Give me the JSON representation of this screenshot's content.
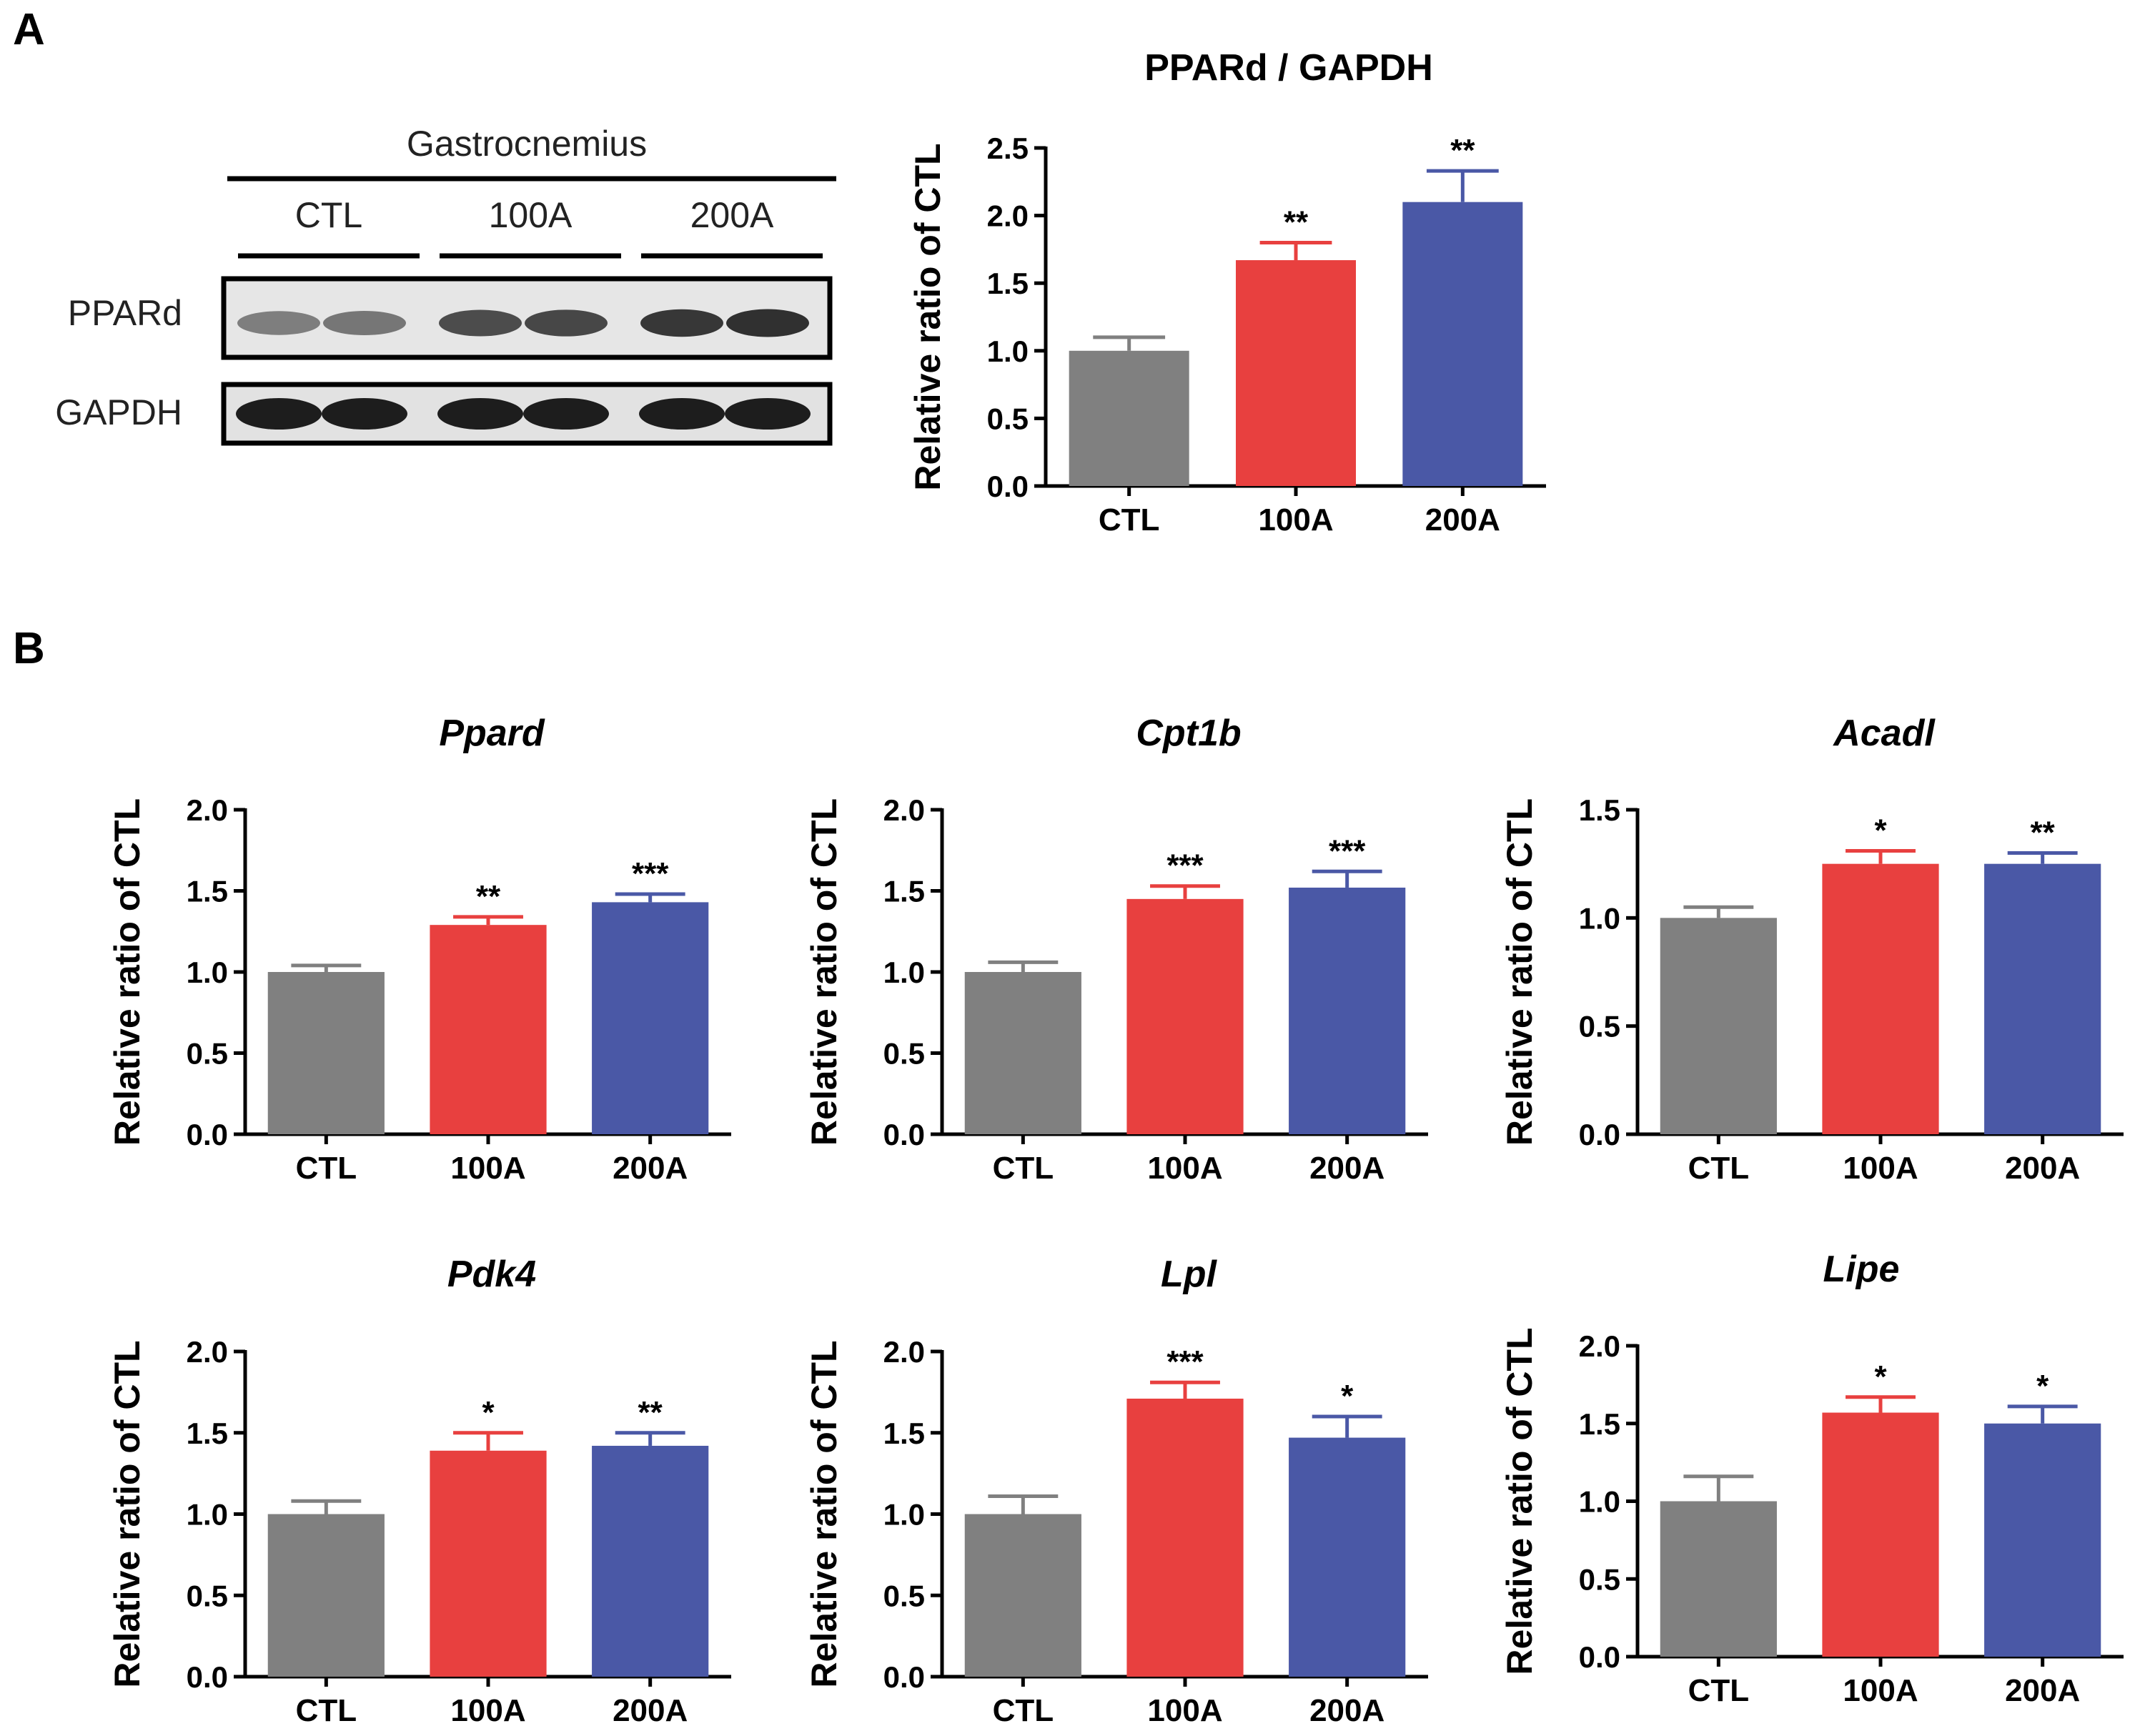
{
  "panels": {
    "a_label": "A",
    "b_label": "B"
  },
  "western_blot": {
    "tissue": "Gastrocnemius",
    "groups": [
      "CTL",
      "100A",
      "200A"
    ],
    "row_labels": [
      "PPARd",
      "GAPDH"
    ],
    "pparD_band_intensity": [
      0.45,
      0.5,
      0.75,
      0.78,
      0.88,
      0.92
    ],
    "gapdh_band_intensity": [
      0.95,
      0.95,
      0.95,
      0.95,
      0.95,
      0.95
    ]
  },
  "colors": {
    "CTL": "#808080",
    "100A": "#e8403f",
    "200A": "#4a58a6",
    "error_CTL": "#808080",
    "error_100A": "#e8403f",
    "error_200A": "#4a58a6"
  },
  "chart_data": [
    {
      "id": "pparD_gapdh",
      "type": "bar",
      "title": "PPARd / GAPDH",
      "title_italic": false,
      "ylabel": "Relative ratio of CTL",
      "xlabel": "",
      "categories": [
        "CTL",
        "100A",
        "200A"
      ],
      "values": [
        1.0,
        1.67,
        2.1
      ],
      "errors": [
        0.1,
        0.13,
        0.23
      ],
      "significance": [
        "",
        "**",
        "**"
      ],
      "ylim": [
        0,
        2.5
      ],
      "yticks": [
        "0.0",
        "0.5",
        "1.0",
        "1.5",
        "2.0",
        "2.5"
      ]
    },
    {
      "id": "ppard",
      "type": "bar",
      "title": "Ppard",
      "title_italic": true,
      "ylabel": "Relative ratio of CTL",
      "xlabel": "",
      "categories": [
        "CTL",
        "100A",
        "200A"
      ],
      "values": [
        1.0,
        1.29,
        1.43
      ],
      "errors": [
        0.04,
        0.05,
        0.05
      ],
      "significance": [
        "",
        "**",
        "***"
      ],
      "ylim": [
        0,
        2.0
      ],
      "yticks": [
        "0.0",
        "0.5",
        "1.0",
        "1.5",
        "2.0"
      ]
    },
    {
      "id": "cpt1b",
      "type": "bar",
      "title": "Cpt1b",
      "title_italic": true,
      "ylabel": "Relative ratio of CTL",
      "xlabel": "",
      "categories": [
        "CTL",
        "100A",
        "200A"
      ],
      "values": [
        1.0,
        1.45,
        1.52
      ],
      "errors": [
        0.06,
        0.08,
        0.1
      ],
      "significance": [
        "",
        "***",
        "***"
      ],
      "ylim": [
        0,
        2.0
      ],
      "yticks": [
        "0.0",
        "0.5",
        "1.0",
        "1.5",
        "2.0"
      ]
    },
    {
      "id": "acadl",
      "type": "bar",
      "title": "Acadl",
      "title_italic": true,
      "ylabel": "Relative ratio of CTL",
      "xlabel": "",
      "categories": [
        "CTL",
        "100A",
        "200A"
      ],
      "values": [
        1.0,
        1.25,
        1.25
      ],
      "errors": [
        0.05,
        0.06,
        0.05
      ],
      "significance": [
        "",
        "*",
        "**"
      ],
      "ylim": [
        0,
        1.5
      ],
      "yticks": [
        "0.0",
        "0.5",
        "1.0",
        "1.5"
      ]
    },
    {
      "id": "pdk4",
      "type": "bar",
      "title": "Pdk4",
      "title_italic": true,
      "ylabel": "Relative ratio of CTL",
      "xlabel": "",
      "categories": [
        "CTL",
        "100A",
        "200A"
      ],
      "values": [
        1.0,
        1.39,
        1.42
      ],
      "errors": [
        0.08,
        0.11,
        0.08
      ],
      "significance": [
        "",
        "*",
        "**"
      ],
      "ylim": [
        0,
        2.0
      ],
      "yticks": [
        "0.0",
        "0.5",
        "1.0",
        "1.5",
        "2.0"
      ]
    },
    {
      "id": "lpl",
      "type": "bar",
      "title": "Lpl",
      "title_italic": true,
      "ylabel": "Relative ratio of CTL",
      "xlabel": "",
      "categories": [
        "CTL",
        "100A",
        "200A"
      ],
      "values": [
        1.0,
        1.71,
        1.47
      ],
      "errors": [
        0.11,
        0.1,
        0.13
      ],
      "significance": [
        "",
        "***",
        "*"
      ],
      "ylim": [
        0,
        2.0
      ],
      "yticks": [
        "0.0",
        "0.5",
        "1.0",
        "1.5",
        "2.0"
      ]
    },
    {
      "id": "lipe",
      "type": "bar",
      "title": "Lipe",
      "title_italic": true,
      "ylabel": "Relative ratio of CTL",
      "xlabel": "",
      "categories": [
        "CTL",
        "100A",
        "200A"
      ],
      "values": [
        1.0,
        1.57,
        1.5
      ],
      "errors": [
        0.16,
        0.1,
        0.11
      ],
      "significance": [
        "",
        "*",
        "*"
      ],
      "ylim": [
        0,
        2.0
      ],
      "yticks": [
        "0.0",
        "0.5",
        "1.0",
        "1.5",
        "2.0"
      ]
    }
  ]
}
